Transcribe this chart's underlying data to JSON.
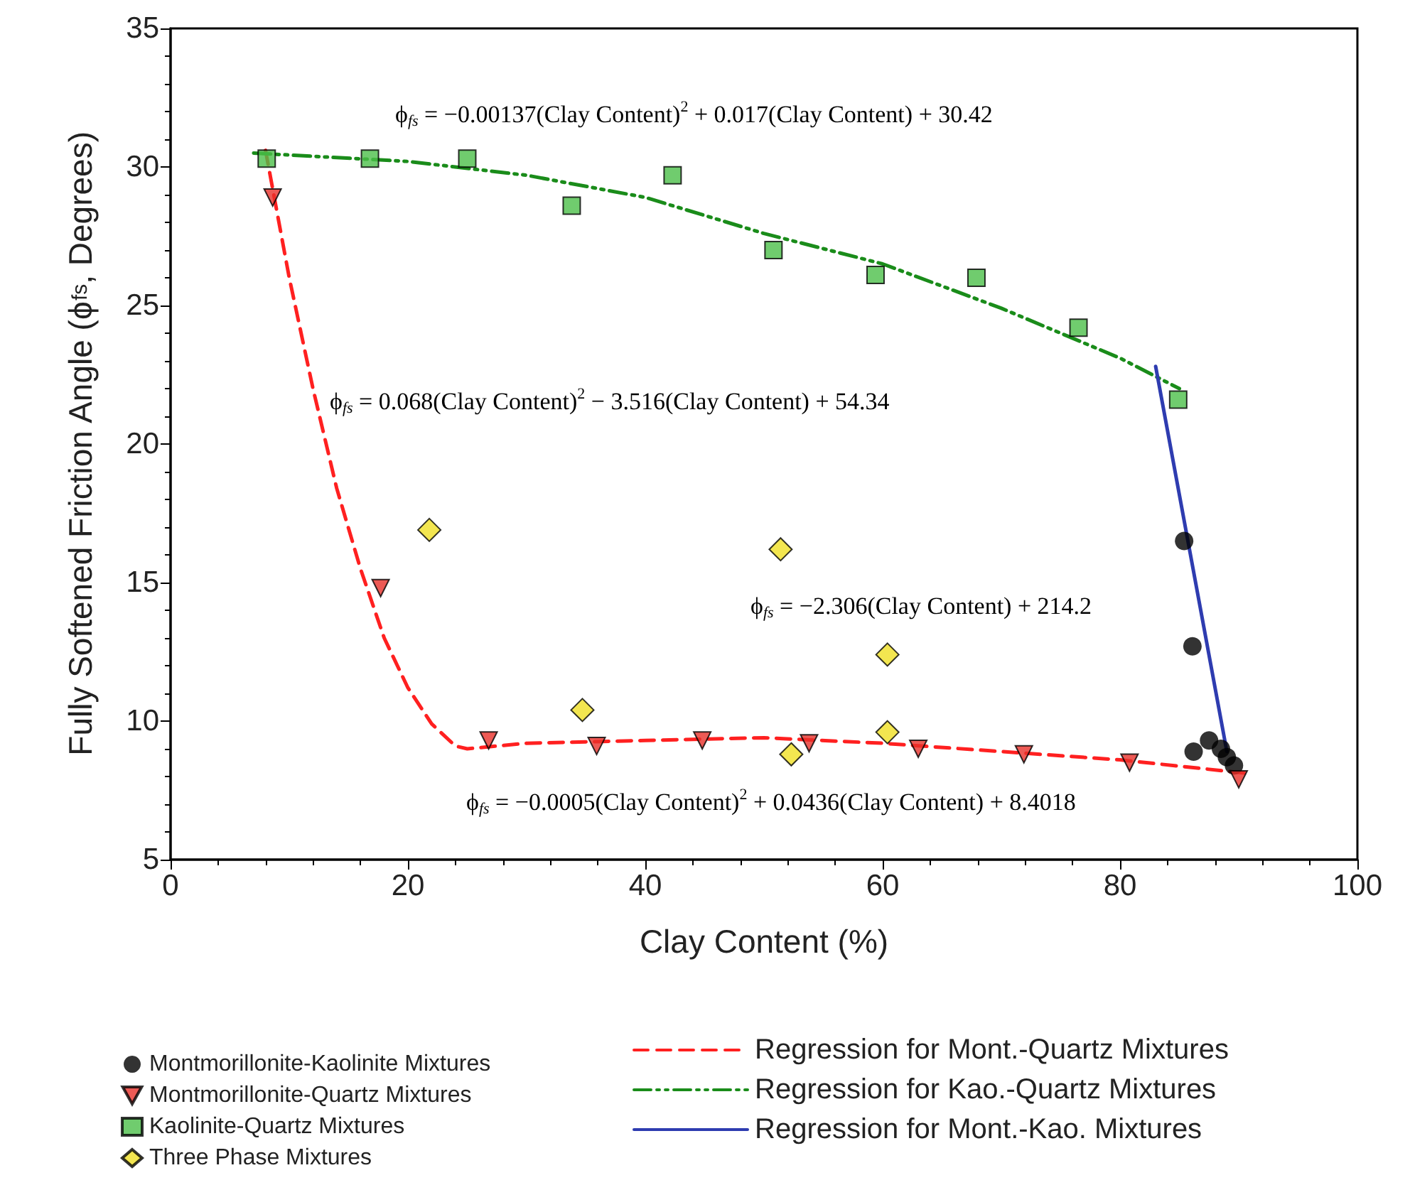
{
  "chart_data": {
    "type": "scatter",
    "xlabel": "Clay Content (%)",
    "ylabel": "Fully Softened Friction Angle (ϕ$_{fs}$, Degrees)",
    "xlim": [
      0,
      100
    ],
    "xticks": [
      0,
      20,
      40,
      60,
      80,
      100
    ],
    "ylim": [
      5,
      35
    ],
    "yticks": [
      5,
      10,
      15,
      20,
      25,
      30,
      35
    ],
    "grid": false,
    "legend": "bottom",
    "annotations": [
      "ϕ$_{fs}$ = −0.00137(Clay Content)$^{2}$ + 0.017(Clay Content) + 30.42",
      "ϕ$_{fs}$ = 0.068(Clay Content)$^{2}$ − 3.516(Clay Content) + 54.34",
      "ϕ$_{fs}$ = −2.306(Clay Content) + 214.2",
      "ϕ$_{fs}$ = −0.0005(Clay Content)$^{2}$ + 0.0436(Clay Content) + 8.4018"
    ],
    "series": [
      {
        "name": "Montmorillonite-Kaolinite Mixtures",
        "marker": "circle",
        "color": "#000000",
        "x": [
          85.4,
          86.1,
          86.2,
          87.5,
          88.5,
          89.0,
          89.6
        ],
        "values": [
          16.5,
          12.7,
          8.9,
          9.3,
          9.0,
          8.7,
          8.4
        ]
      },
      {
        "name": "Montmorillonite-Quartz Mixtures",
        "marker": "triangle",
        "color": "#e8312a",
        "x": [
          8.6,
          17.7,
          26.8,
          35.9,
          44.8,
          53.8,
          63.0,
          71.9,
          80.8,
          90.0
        ],
        "values": [
          28.9,
          14.8,
          9.3,
          9.1,
          9.3,
          9.2,
          9.0,
          8.8,
          8.5,
          7.9
        ]
      },
      {
        "name": "Kaolinite-Quartz Mixtures",
        "marker": "square",
        "color": "#4cbf4a",
        "x": [
          8.1,
          16.8,
          25.0,
          33.8,
          42.3,
          50.8,
          59.4,
          67.9,
          76.5,
          84.9
        ],
        "values": [
          30.3,
          30.3,
          30.3,
          28.6,
          29.7,
          27.0,
          26.1,
          26.0,
          24.2,
          21.6
        ]
      },
      {
        "name": "Three Phase Mixtures",
        "marker": "diamond",
        "color": "#f0e024",
        "x": [
          21.8,
          34.7,
          51.4,
          52.3,
          60.4,
          60.4
        ],
        "values": [
          16.9,
          10.4,
          16.2,
          8.8,
          12.4,
          9.6
        ]
      },
      {
        "name": "Regression for Mont.-Quartz Mixtures",
        "type": "line",
        "marker": "none",
        "line_style": "dashed",
        "color": "#ff2020",
        "x": [
          8,
          10,
          12,
          14,
          16,
          18,
          20,
          22,
          24,
          25,
          30,
          40,
          50,
          60,
          70,
          80,
          91
        ],
        "values": [
          30.6,
          26.0,
          22.0,
          18.4,
          15.5,
          13.0,
          11.2,
          9.9,
          9.1,
          9.0,
          9.2,
          9.3,
          9.4,
          9.2,
          8.9,
          8.6,
          8.1
        ]
      },
      {
        "name": "Regression for Kao.-Quartz Mixtures",
        "type": "line",
        "marker": "none",
        "line_style": "dashdotdot",
        "color": "#1a8c1a",
        "x": [
          7,
          20,
          30,
          40,
          50,
          60,
          70,
          80,
          85
        ],
        "values": [
          30.5,
          30.2,
          29.7,
          28.9,
          27.6,
          26.5,
          24.9,
          23.1,
          22.0
        ]
      },
      {
        "name": "Regression for Mont.-Kao. Mixtures",
        "type": "line",
        "marker": "none",
        "line_style": "solid",
        "color": "#2e3cb0",
        "x": [
          83,
          89
        ],
        "values": [
          22.8,
          8.9
        ]
      }
    ]
  }
}
